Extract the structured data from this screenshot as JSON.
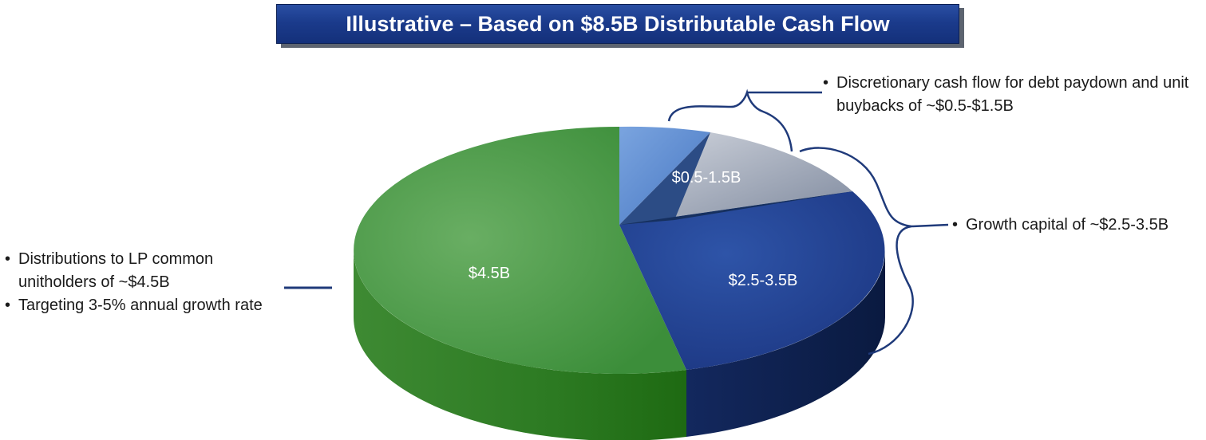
{
  "title": "Illustrative – Based on $8.5B Distributable Cash Flow",
  "chart_data": {
    "type": "pie",
    "variant": "3d",
    "title": "Illustrative – Based on $8.5B Distributable Cash Flow",
    "slices": [
      {
        "label": "$4.5B",
        "value": 4.5,
        "color": "#3f9a3f"
      },
      {
        "label": "$0.5-1.5B",
        "value": 1.0,
        "color": "#5b8ad0"
      },
      {
        "label": "$2.5-3.5B",
        "value": 3.0,
        "color": "#1e3f92"
      }
    ],
    "total": 8.5
  },
  "callouts": {
    "distributions": {
      "bullets": [
        "Distributions to LP common unitholders of ~$4.5B",
        "Targeting 3-5% annual growth rate"
      ]
    },
    "discretionary": {
      "bullets": [
        "Discretionary cash flow for debt paydown and unit buybacks of ~$0.5-$1.5B"
      ]
    },
    "growth": {
      "bullets": [
        "Growth capital of ~$2.5-3.5B"
      ]
    }
  },
  "bullet_glyph": "•",
  "colors": {
    "banner": "#1b3b8c",
    "green": "#3f9a3f",
    "light_blue": "#5b8ad0",
    "gray_blue": "#8a95aa",
    "dark_blue": "#1e3f92",
    "bracket": "#1f3a7a"
  }
}
